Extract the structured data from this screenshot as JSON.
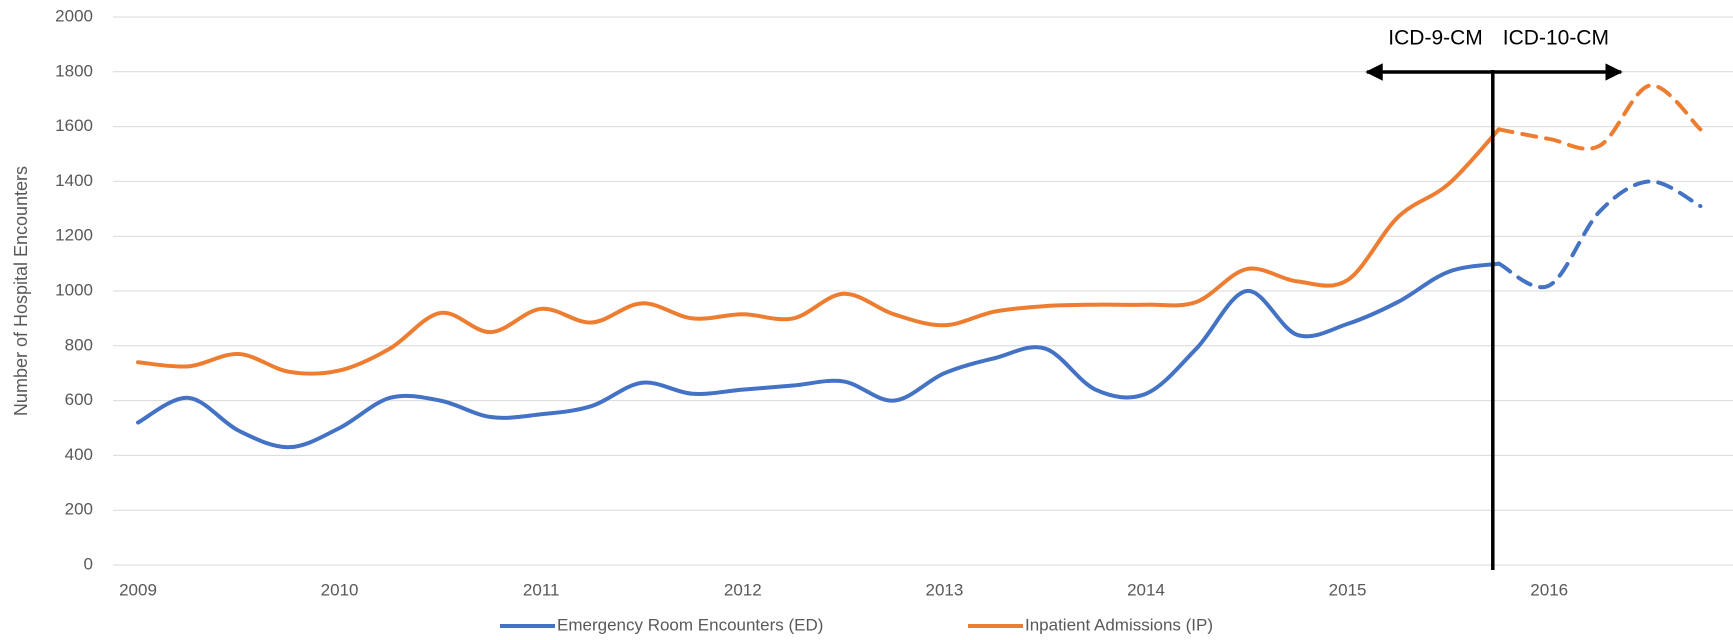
{
  "chart_data": {
    "type": "line",
    "y_axis_label": "Number of Hospital Encounters",
    "categories": [
      "2009",
      null,
      null,
      null,
      "2010",
      null,
      null,
      null,
      "2011",
      null,
      null,
      null,
      "2012",
      null,
      null,
      null,
      "2013",
      null,
      null,
      null,
      "2014",
      null,
      null,
      null,
      "2015",
      null,
      null,
      null,
      "2016",
      null,
      null,
      null
    ],
    "series": [
      {
        "name": "Emergency Room Encounters (ED)",
        "color": "#4472c4",
        "values": [
          520,
          610,
          490,
          430,
          500,
          610,
          600,
          540,
          550,
          580,
          665,
          625,
          640,
          655,
          670,
          600,
          700,
          755,
          790,
          640,
          625,
          790,
          1000,
          840,
          880,
          960,
          1070,
          1100,
          1020,
          1290,
          1400,
          1310
        ]
      },
      {
        "name": "Inpatient Admissions (IP)",
        "color": "#ed7d31",
        "values": [
          740,
          725,
          770,
          705,
          710,
          790,
          920,
          850,
          935,
          885,
          955,
          900,
          915,
          900,
          990,
          915,
          875,
          925,
          945,
          950,
          950,
          960,
          1080,
          1035,
          1040,
          1270,
          1390,
          1590,
          1555,
          1530,
          1750,
          1590
        ]
      }
    ],
    "dashed_from_category": 27,
    "annotations": [
      "ICD-9-CM",
      "ICD-10-CM"
    ],
    "ylim": [
      0,
      2000
    ],
    "yticks": [
      0,
      200,
      400,
      600,
      800,
      1000,
      1200,
      1400,
      1600,
      1800,
      2000
    ],
    "grid": true,
    "legend": "bottom"
  }
}
